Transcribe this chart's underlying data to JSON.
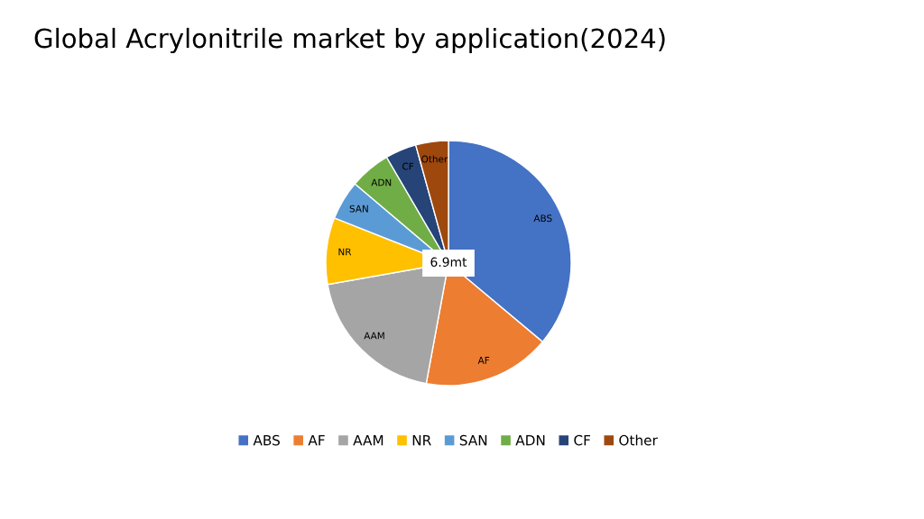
{
  "chart_data": {
    "type": "pie",
    "title": "Global Acrylonitrile market by application(2024)",
    "categories": [
      "ABS",
      "AF",
      "AAM",
      "NR",
      "SAN",
      "ADN",
      "CF",
      "Other"
    ],
    "values": [
      36.1,
      16.8,
      19.3,
      8.8,
      5.2,
      5.4,
      4.1,
      4.3
    ],
    "colors": [
      "#4472c4",
      "#ed7d31",
      "#a5a5a5",
      "#ffc000",
      "#5b9bd5",
      "#70ad47",
      "#264478",
      "#9e480e"
    ],
    "annotations": [
      "6.9mt"
    ],
    "legend": "bottom"
  }
}
